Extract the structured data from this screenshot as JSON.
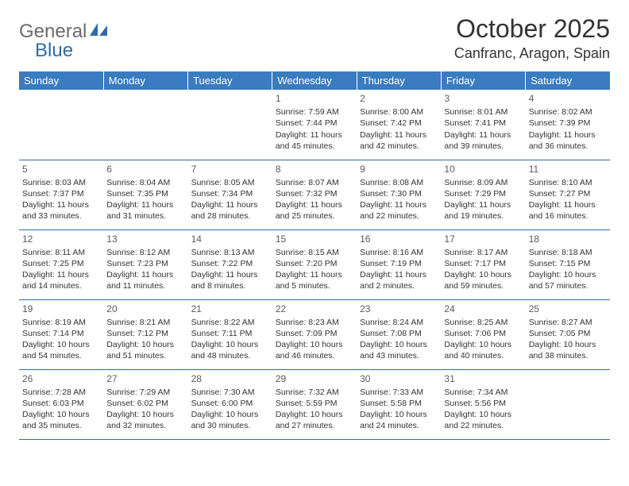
{
  "brand": {
    "part1": "General",
    "part2": "Blue"
  },
  "title": "October 2025",
  "location": "Canfranc, Aragon, Spain",
  "colors": {
    "header_bg": "#3b7bbf",
    "header_text": "#ffffff",
    "brand_gray": "#6b6b6b",
    "brand_blue": "#2e6ca8",
    "cell_border": "#2e6ca8",
    "text": "#333333",
    "background": "#ffffff"
  },
  "weekdays": [
    "Sunday",
    "Monday",
    "Tuesday",
    "Wednesday",
    "Thursday",
    "Friday",
    "Saturday"
  ],
  "weeks": [
    [
      null,
      null,
      null,
      {
        "day": "1",
        "sunrise": "Sunrise: 7:59 AM",
        "sunset": "Sunset: 7:44 PM",
        "daylight": "Daylight: 11 hours and 45 minutes."
      },
      {
        "day": "2",
        "sunrise": "Sunrise: 8:00 AM",
        "sunset": "Sunset: 7:42 PM",
        "daylight": "Daylight: 11 hours and 42 minutes."
      },
      {
        "day": "3",
        "sunrise": "Sunrise: 8:01 AM",
        "sunset": "Sunset: 7:41 PM",
        "daylight": "Daylight: 11 hours and 39 minutes."
      },
      {
        "day": "4",
        "sunrise": "Sunrise: 8:02 AM",
        "sunset": "Sunset: 7:39 PM",
        "daylight": "Daylight: 11 hours and 36 minutes."
      }
    ],
    [
      {
        "day": "5",
        "sunrise": "Sunrise: 8:03 AM",
        "sunset": "Sunset: 7:37 PM",
        "daylight": "Daylight: 11 hours and 33 minutes."
      },
      {
        "day": "6",
        "sunrise": "Sunrise: 8:04 AM",
        "sunset": "Sunset: 7:35 PM",
        "daylight": "Daylight: 11 hours and 31 minutes."
      },
      {
        "day": "7",
        "sunrise": "Sunrise: 8:05 AM",
        "sunset": "Sunset: 7:34 PM",
        "daylight": "Daylight: 11 hours and 28 minutes."
      },
      {
        "day": "8",
        "sunrise": "Sunrise: 8:07 AM",
        "sunset": "Sunset: 7:32 PM",
        "daylight": "Daylight: 11 hours and 25 minutes."
      },
      {
        "day": "9",
        "sunrise": "Sunrise: 8:08 AM",
        "sunset": "Sunset: 7:30 PM",
        "daylight": "Daylight: 11 hours and 22 minutes."
      },
      {
        "day": "10",
        "sunrise": "Sunrise: 8:09 AM",
        "sunset": "Sunset: 7:29 PM",
        "daylight": "Daylight: 11 hours and 19 minutes."
      },
      {
        "day": "11",
        "sunrise": "Sunrise: 8:10 AM",
        "sunset": "Sunset: 7:27 PM",
        "daylight": "Daylight: 11 hours and 16 minutes."
      }
    ],
    [
      {
        "day": "12",
        "sunrise": "Sunrise: 8:11 AM",
        "sunset": "Sunset: 7:25 PM",
        "daylight": "Daylight: 11 hours and 14 minutes."
      },
      {
        "day": "13",
        "sunrise": "Sunrise: 8:12 AM",
        "sunset": "Sunset: 7:23 PM",
        "daylight": "Daylight: 11 hours and 11 minutes."
      },
      {
        "day": "14",
        "sunrise": "Sunrise: 8:13 AM",
        "sunset": "Sunset: 7:22 PM",
        "daylight": "Daylight: 11 hours and 8 minutes."
      },
      {
        "day": "15",
        "sunrise": "Sunrise: 8:15 AM",
        "sunset": "Sunset: 7:20 PM",
        "daylight": "Daylight: 11 hours and 5 minutes."
      },
      {
        "day": "16",
        "sunrise": "Sunrise: 8:16 AM",
        "sunset": "Sunset: 7:19 PM",
        "daylight": "Daylight: 11 hours and 2 minutes."
      },
      {
        "day": "17",
        "sunrise": "Sunrise: 8:17 AM",
        "sunset": "Sunset: 7:17 PM",
        "daylight": "Daylight: 10 hours and 59 minutes."
      },
      {
        "day": "18",
        "sunrise": "Sunrise: 8:18 AM",
        "sunset": "Sunset: 7:15 PM",
        "daylight": "Daylight: 10 hours and 57 minutes."
      }
    ],
    [
      {
        "day": "19",
        "sunrise": "Sunrise: 8:19 AM",
        "sunset": "Sunset: 7:14 PM",
        "daylight": "Daylight: 10 hours and 54 minutes."
      },
      {
        "day": "20",
        "sunrise": "Sunrise: 8:21 AM",
        "sunset": "Sunset: 7:12 PM",
        "daylight": "Daylight: 10 hours and 51 minutes."
      },
      {
        "day": "21",
        "sunrise": "Sunrise: 8:22 AM",
        "sunset": "Sunset: 7:11 PM",
        "daylight": "Daylight: 10 hours and 48 minutes."
      },
      {
        "day": "22",
        "sunrise": "Sunrise: 8:23 AM",
        "sunset": "Sunset: 7:09 PM",
        "daylight": "Daylight: 10 hours and 46 minutes."
      },
      {
        "day": "23",
        "sunrise": "Sunrise: 8:24 AM",
        "sunset": "Sunset: 7:08 PM",
        "daylight": "Daylight: 10 hours and 43 minutes."
      },
      {
        "day": "24",
        "sunrise": "Sunrise: 8:25 AM",
        "sunset": "Sunset: 7:06 PM",
        "daylight": "Daylight: 10 hours and 40 minutes."
      },
      {
        "day": "25",
        "sunrise": "Sunrise: 8:27 AM",
        "sunset": "Sunset: 7:05 PM",
        "daylight": "Daylight: 10 hours and 38 minutes."
      }
    ],
    [
      {
        "day": "26",
        "sunrise": "Sunrise: 7:28 AM",
        "sunset": "Sunset: 6:03 PM",
        "daylight": "Daylight: 10 hours and 35 minutes."
      },
      {
        "day": "27",
        "sunrise": "Sunrise: 7:29 AM",
        "sunset": "Sunset: 6:02 PM",
        "daylight": "Daylight: 10 hours and 32 minutes."
      },
      {
        "day": "28",
        "sunrise": "Sunrise: 7:30 AM",
        "sunset": "Sunset: 6:00 PM",
        "daylight": "Daylight: 10 hours and 30 minutes."
      },
      {
        "day": "29",
        "sunrise": "Sunrise: 7:32 AM",
        "sunset": "Sunset: 5:59 PM",
        "daylight": "Daylight: 10 hours and 27 minutes."
      },
      {
        "day": "30",
        "sunrise": "Sunrise: 7:33 AM",
        "sunset": "Sunset: 5:58 PM",
        "daylight": "Daylight: 10 hours and 24 minutes."
      },
      {
        "day": "31",
        "sunrise": "Sunrise: 7:34 AM",
        "sunset": "Sunset: 5:56 PM",
        "daylight": "Daylight: 10 hours and 22 minutes."
      },
      null
    ]
  ]
}
